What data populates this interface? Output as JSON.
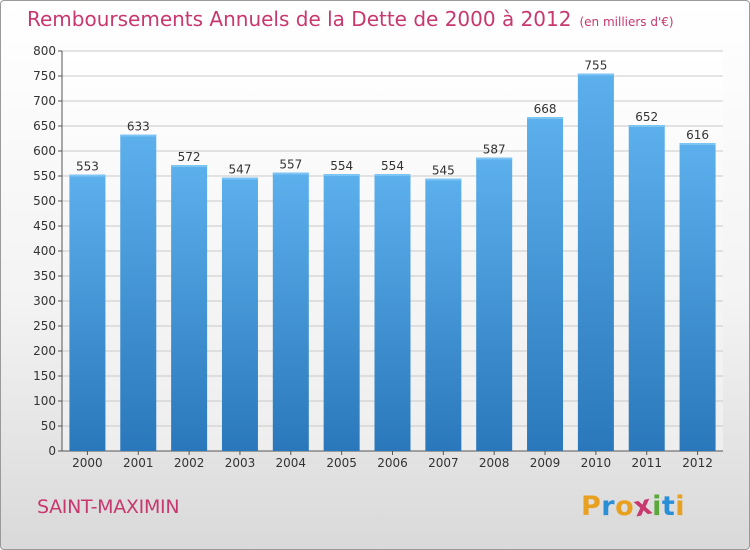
{
  "title": "Remboursements Annuels de la Dette de 2000 à 2012",
  "unit_note": "(en milliers d'€)",
  "commune": "SAINT-MAXIMIN",
  "logo": {
    "letters": [
      "P",
      "r",
      "o",
      "x",
      "i",
      "t",
      "i"
    ],
    "colors": [
      "#e8a020",
      "#2a8fd6",
      "#e8a020",
      "#c8386e",
      "#5aa83c",
      "#2a8fd6",
      "#e8a020"
    ]
  },
  "colors": {
    "bar": "#3a8fd4",
    "bar_light": "#5cb0ec",
    "bar_dark": "#2a78bb",
    "title": "#c8386e"
  },
  "chart_data": {
    "type": "bar",
    "title": "Remboursements Annuels de la Dette de 2000 à 2012",
    "ylabel": "en milliers d'€",
    "xlabel": "",
    "categories": [
      "2000",
      "2001",
      "2002",
      "2003",
      "2004",
      "2005",
      "2006",
      "2007",
      "2008",
      "2009",
      "2010",
      "2011",
      "2012"
    ],
    "values": [
      553,
      633,
      572,
      547,
      557,
      554,
      554,
      545,
      587,
      668,
      755,
      652,
      616
    ],
    "ylim": [
      0,
      800
    ],
    "yticks": [
      0,
      50,
      100,
      150,
      200,
      250,
      300,
      350,
      400,
      450,
      500,
      550,
      600,
      650,
      700,
      750,
      800
    ],
    "grid": true
  }
}
